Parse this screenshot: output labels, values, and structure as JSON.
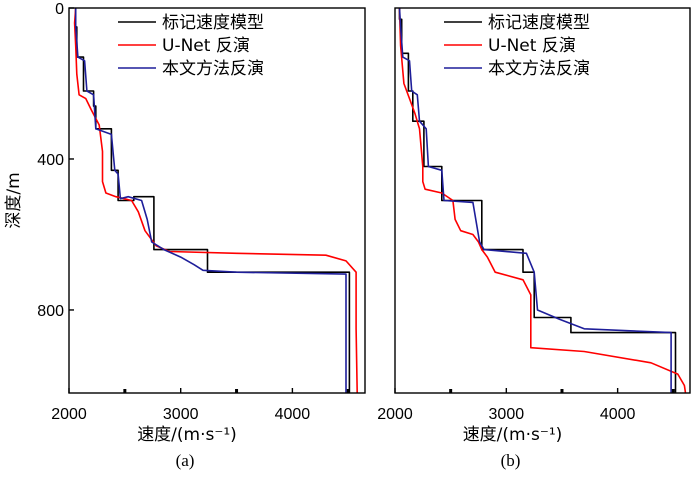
{
  "chart_data": [
    {
      "type": "line",
      "caption": "(a)",
      "xlabel": "速度/(m·s⁻¹)",
      "ylabel": "深度/m",
      "xlim": [
        2000,
        4650
      ],
      "ylim": [
        1020,
        0
      ],
      "xticks": [
        "2000",
        "3000",
        "4000"
      ],
      "xtick_values": [
        2000,
        3000,
        4000
      ],
      "yticks": [
        "0",
        "400",
        "800"
      ],
      "ytick_values": [
        0,
        400,
        800
      ],
      "legend": "top-right",
      "series": [
        {
          "name": "标记速度模型",
          "color": "#000000",
          "points": [
            [
              2060,
              0
            ],
            [
              2060,
              50
            ],
            [
              2070,
              50
            ],
            [
              2070,
              130
            ],
            [
              2130,
              130
            ],
            [
              2130,
              220
            ],
            [
              2220,
              220
            ],
            [
              2220,
              260
            ],
            [
              2240,
              260
            ],
            [
              2240,
              320
            ],
            [
              2380,
              320
            ],
            [
              2380,
              430
            ],
            [
              2440,
              430
            ],
            [
              2440,
              510
            ],
            [
              2580,
              510
            ],
            [
              2580,
              500
            ],
            [
              2760,
              500
            ],
            [
              2760,
              640
            ],
            [
              3240,
              640
            ],
            [
              3240,
              700
            ],
            [
              4510,
              700
            ],
            [
              4510,
              1020
            ]
          ]
        },
        {
          "name": "U-Net 反演",
          "color": "#ff0000",
          "points": [
            [
              2060,
              0
            ],
            [
              2050,
              40
            ],
            [
              2060,
              100
            ],
            [
              2070,
              175
            ],
            [
              2090,
              230
            ],
            [
              2150,
              240
            ],
            [
              2200,
              270
            ],
            [
              2270,
              310
            ],
            [
              2300,
              380
            ],
            [
              2300,
              460
            ],
            [
              2330,
              490
            ],
            [
              2420,
              500
            ],
            [
              2560,
              510
            ],
            [
              2620,
              540
            ],
            [
              2680,
              590
            ],
            [
              2780,
              630
            ],
            [
              2900,
              645
            ],
            [
              3500,
              650
            ],
            [
              4300,
              655
            ],
            [
              4480,
              670
            ],
            [
              4570,
              700
            ],
            [
              4570,
              850
            ],
            [
              4580,
              1020
            ]
          ]
        },
        {
          "name": "本文方法反演",
          "color": "#1e1e9a",
          "points": [
            [
              2060,
              0
            ],
            [
              2060,
              50
            ],
            [
              2080,
              130
            ],
            [
              2140,
              140
            ],
            [
              2160,
              220
            ],
            [
              2220,
              230
            ],
            [
              2240,
              320
            ],
            [
              2380,
              335
            ],
            [
              2410,
              430
            ],
            [
              2440,
              440
            ],
            [
              2460,
              505
            ],
            [
              2530,
              500
            ],
            [
              2650,
              510
            ],
            [
              2700,
              560
            ],
            [
              2740,
              620
            ],
            [
              2850,
              640
            ],
            [
              3000,
              660
            ],
            [
              3120,
              680
            ],
            [
              3200,
              695
            ],
            [
              3500,
              700
            ],
            [
              4480,
              705
            ],
            [
              4480,
              1020
            ]
          ]
        }
      ]
    },
    {
      "type": "line",
      "caption": "(b)",
      "xlabel": "速度/(m·s⁻¹)",
      "ylabel": "",
      "xlim": [
        2000,
        4650
      ],
      "ylim": [
        1020,
        0
      ],
      "xticks": [
        "2000",
        "3000",
        "4000"
      ],
      "xtick_values": [
        2000,
        3000,
        4000
      ],
      "yticks": [],
      "ytick_values": [],
      "legend": "top-right",
      "series": [
        {
          "name": "标记速度模型",
          "color": "#000000",
          "points": [
            [
              2040,
              0
            ],
            [
              2040,
              30
            ],
            [
              2060,
              30
            ],
            [
              2060,
              120
            ],
            [
              2120,
              120
            ],
            [
              2120,
              220
            ],
            [
              2160,
              220
            ],
            [
              2160,
              300
            ],
            [
              2260,
              300
            ],
            [
              2260,
              420
            ],
            [
              2420,
              420
            ],
            [
              2420,
              510
            ],
            [
              2780,
              510
            ],
            [
              2780,
              640
            ],
            [
              3150,
              640
            ],
            [
              3150,
              700
            ],
            [
              3250,
              700
            ],
            [
              3250,
              820
            ],
            [
              3580,
              820
            ],
            [
              3580,
              860
            ],
            [
              4520,
              860
            ],
            [
              4520,
              1020
            ]
          ]
        },
        {
          "name": "U-Net 反演",
          "color": "#ff0000",
          "points": [
            [
              2040,
              0
            ],
            [
              2050,
              100
            ],
            [
              2080,
              200
            ],
            [
              2130,
              240
            ],
            [
              2180,
              280
            ],
            [
              2220,
              320
            ],
            [
              2250,
              420
            ],
            [
              2250,
              460
            ],
            [
              2270,
              480
            ],
            [
              2420,
              490
            ],
            [
              2520,
              510
            ],
            [
              2540,
              560
            ],
            [
              2590,
              590
            ],
            [
              2700,
              600
            ],
            [
              2750,
              620
            ],
            [
              2780,
              640
            ],
            [
              2830,
              660
            ],
            [
              2900,
              700
            ],
            [
              3150,
              720
            ],
            [
              3220,
              760
            ],
            [
              3220,
              900
            ],
            [
              3700,
              910
            ],
            [
              4300,
              940
            ],
            [
              4540,
              970
            ],
            [
              4600,
              1000
            ],
            [
              4610,
              1020
            ]
          ]
        },
        {
          "name": "本文方法反演",
          "color": "#1e1e9a",
          "points": [
            [
              2040,
              0
            ],
            [
              2050,
              50
            ],
            [
              2070,
              130
            ],
            [
              2130,
              140
            ],
            [
              2150,
              220
            ],
            [
              2200,
              230
            ],
            [
              2220,
              300
            ],
            [
              2280,
              320
            ],
            [
              2300,
              420
            ],
            [
              2420,
              430
            ],
            [
              2440,
              510
            ],
            [
              2700,
              515
            ],
            [
              2760,
              620
            ],
            [
              2800,
              640
            ],
            [
              3180,
              650
            ],
            [
              3250,
              700
            ],
            [
              3280,
              800
            ],
            [
              3480,
              825
            ],
            [
              3700,
              850
            ],
            [
              4480,
              860
            ],
            [
              4480,
              1020
            ]
          ]
        }
      ]
    }
  ]
}
